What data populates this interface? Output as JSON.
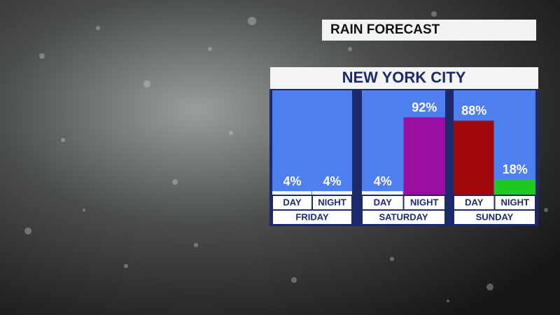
{
  "chart_data": {
    "type": "bar",
    "title": "RAIN FORECAST",
    "subtitle": "NEW YORK CITY",
    "groups": [
      {
        "label": "FRIDAY",
        "categories": [
          "DAY",
          "NIGHT"
        ],
        "values": [
          4,
          4
        ],
        "value_labels": [
          "4%",
          "4%"
        ],
        "colors": [
          "#ffffff",
          "#ffffff"
        ]
      },
      {
        "label": "SATURDAY",
        "categories": [
          "DAY",
          "NIGHT"
        ],
        "values": [
          4,
          92
        ],
        "value_labels": [
          "4%",
          "92%"
        ],
        "colors": [
          "#ffffff",
          "#9a0ea0"
        ]
      },
      {
        "label": "SUNDAY",
        "categories": [
          "DAY",
          "NIGHT"
        ],
        "values": [
          88,
          18
        ],
        "value_labels": [
          "88%",
          "18%"
        ],
        "colors": [
          "#a00a0c",
          "#22c822"
        ]
      }
    ]
  }
}
